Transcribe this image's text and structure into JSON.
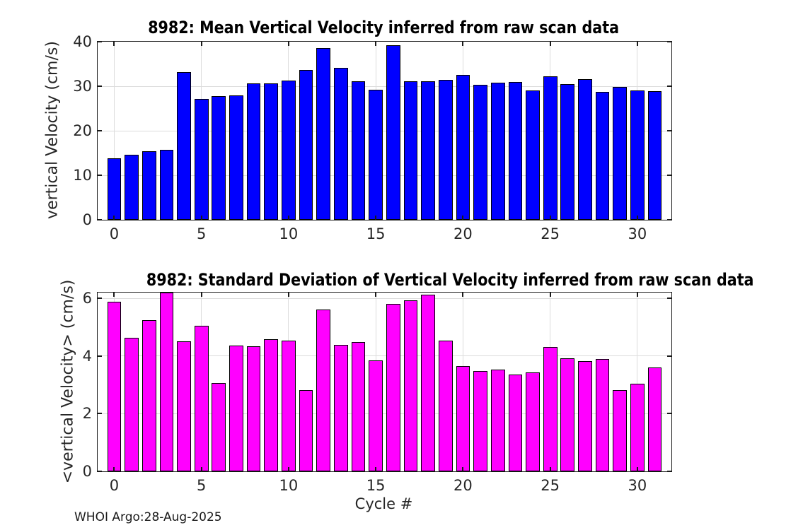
{
  "figure": {
    "footer": "WHOI Argo:28-Aug-2025"
  },
  "chart_data": [
    {
      "type": "bar",
      "title": "8982: Mean Vertical Velocity inferred from raw scan data",
      "ylabel": "vertical Velocity (cm/s)",
      "xlabel": "",
      "bar_color": "#0000ff",
      "edge_color": "#000000",
      "grid": true,
      "bar_width": 0.8,
      "xlim": [
        -0.95,
        31.95
      ],
      "ylim": [
        0,
        40
      ],
      "xticks": [
        0,
        5,
        10,
        15,
        20,
        25,
        30
      ],
      "yticks": [
        0,
        10,
        20,
        30,
        40
      ],
      "x": [
        0,
        1,
        2,
        3,
        4,
        5,
        6,
        7,
        8,
        9,
        10,
        11,
        12,
        13,
        14,
        15,
        16,
        17,
        18,
        19,
        20,
        21,
        22,
        23,
        24,
        25,
        26,
        27,
        28,
        29,
        30,
        31
      ],
      "values": [
        13.8,
        14.6,
        15.4,
        15.7,
        33.1,
        27.2,
        27.7,
        27.9,
        30.6,
        30.6,
        31.2,
        33.7,
        38.6,
        34.1,
        31.1,
        29.2,
        39.2,
        31.1,
        31.1,
        31.5,
        32.5,
        30.3,
        30.8,
        31.0,
        29.1,
        32.2,
        30.4,
        31.6,
        28.8,
        29.8,
        29.0,
        28.9
      ]
    },
    {
      "type": "bar",
      "title": "8982: Standard Deviation of Vertical Velocity inferred from raw scan data",
      "ylabel": "<vertical Velocity> (cm/s)",
      "xlabel": "Cycle #",
      "bar_color": "#ff00ff",
      "edge_color": "#000000",
      "grid": true,
      "bar_width": 0.8,
      "xlim": [
        -0.95,
        31.95
      ],
      "ylim": [
        0,
        6.2
      ],
      "xticks": [
        0,
        5,
        10,
        15,
        20,
        25,
        30
      ],
      "yticks": [
        0,
        2,
        4,
        6
      ],
      "x": [
        0,
        1,
        2,
        3,
        4,
        5,
        6,
        7,
        8,
        9,
        10,
        11,
        12,
        13,
        14,
        15,
        16,
        17,
        18,
        19,
        20,
        21,
        22,
        23,
        24,
        25,
        26,
        27,
        28,
        29,
        30,
        31
      ],
      "values": [
        5.88,
        4.64,
        5.25,
        6.2,
        4.51,
        5.04,
        3.06,
        4.37,
        4.34,
        4.59,
        4.54,
        2.81,
        5.6,
        4.39,
        4.48,
        3.85,
        5.82,
        5.93,
        6.12,
        4.54,
        3.64,
        3.47,
        3.52,
        3.36,
        3.44,
        4.31,
        3.93,
        3.83,
        3.89,
        2.82,
        3.05,
        3.61
      ]
    }
  ]
}
